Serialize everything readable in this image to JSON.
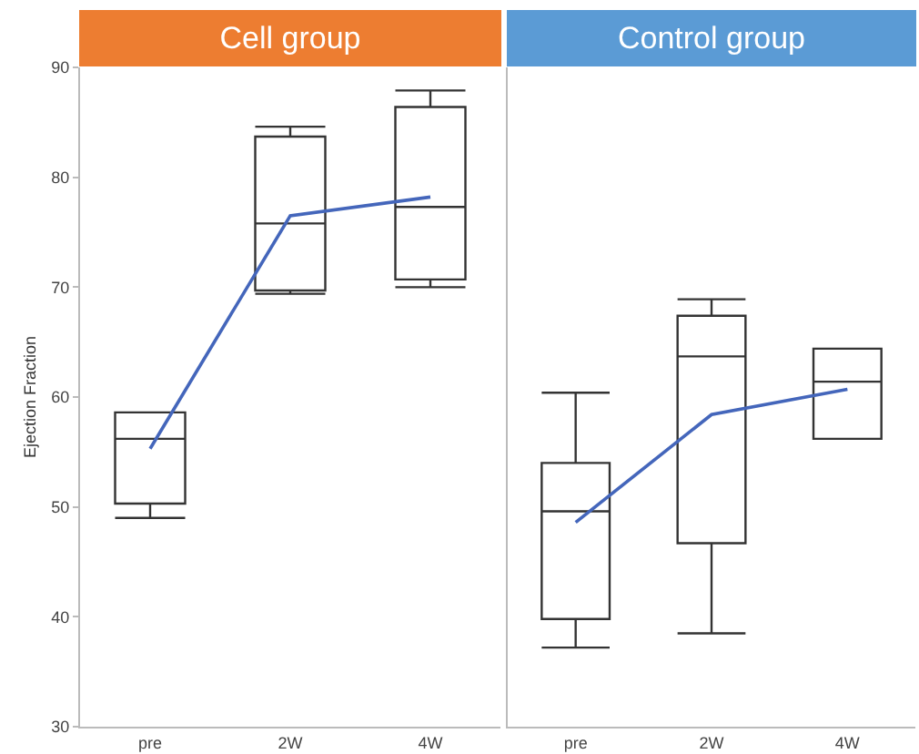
{
  "chart_data": [
    {
      "type": "box",
      "title": "Cell group",
      "ylabel": "Ejection Fraction",
      "categories": [
        "pre",
        "2W",
        "4W"
      ],
      "ylim": [
        30,
        90
      ],
      "yticks": [
        30,
        40,
        50,
        60,
        70,
        80,
        90
      ],
      "grid": false,
      "series": [
        {
          "color": "#333333",
          "boxes": [
            {
              "low": 49.0,
              "q1": 50.3,
              "median": 56.2,
              "q3": 58.6,
              "high": 58.6
            },
            {
              "low": 69.4,
              "q1": 69.7,
              "median": 75.8,
              "q3": 83.7,
              "high": 84.6
            },
            {
              "low": 70.0,
              "q1": 70.7,
              "median": 77.3,
              "q3": 86.4,
              "high": 87.9
            }
          ]
        },
        {
          "type": "line",
          "color": "#4466bb",
          "marker": "none",
          "values": [
            55.3,
            76.5,
            78.2
          ]
        }
      ]
    },
    {
      "type": "box",
      "title": "Control group",
      "categories": [
        "pre",
        "2W",
        "4W"
      ],
      "ylim": [
        30,
        90
      ],
      "tick_labels": "x",
      "grid": false,
      "series": [
        {
          "color": "#333333",
          "boxes": [
            {
              "low": 37.2,
              "q1": 39.8,
              "median": 49.6,
              "q3": 54.0,
              "high": 60.4
            },
            {
              "low": 38.5,
              "q1": 46.7,
              "median": 63.7,
              "q3": 67.4,
              "high": 68.9
            },
            {
              "low": 56.2,
              "q1": 56.2,
              "median": 61.4,
              "q3": 64.4,
              "high": 64.4
            }
          ]
        },
        {
          "type": "line",
          "color": "#4466bb",
          "marker": "none",
          "values": [
            48.6,
            58.4,
            60.7
          ]
        }
      ]
    }
  ]
}
